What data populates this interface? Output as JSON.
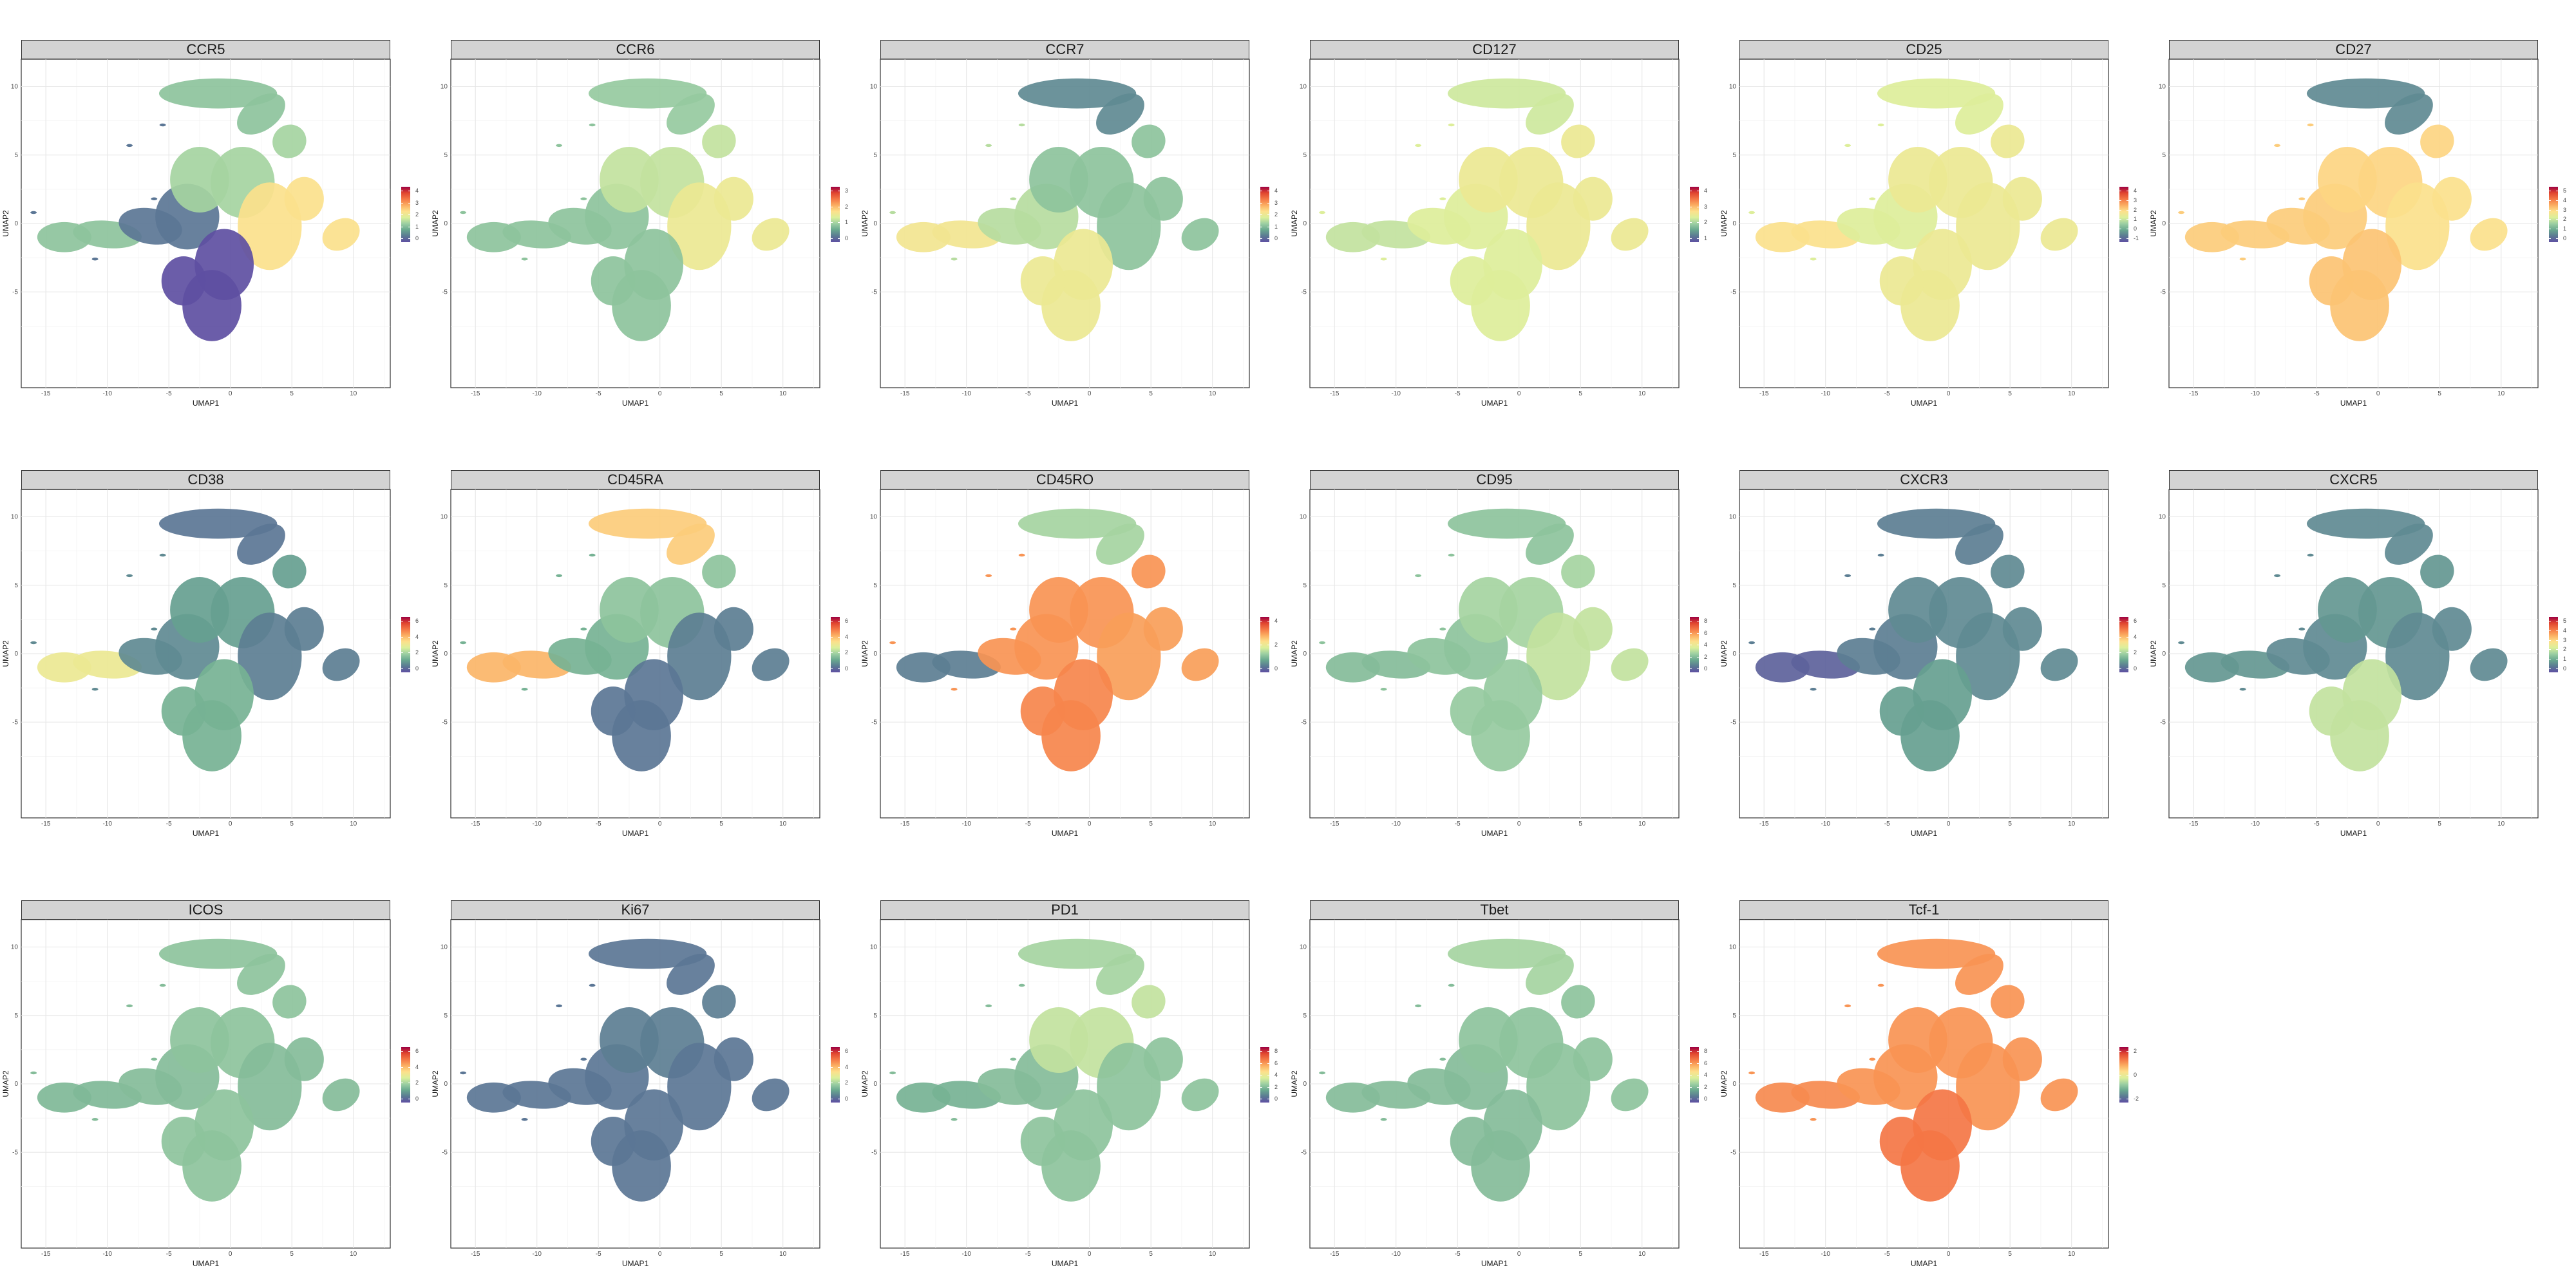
{
  "colors": {
    "panel_border": "#333333",
    "strip_fill": "#d3d3d3",
    "gridline": "#e6e6e6",
    "palette": [
      "#5e4fa2",
      "#3288bd",
      "#66c2a5",
      "#abdda4",
      "#e6f598",
      "#ffffbf",
      "#fee08b",
      "#fdae61",
      "#f46d43",
      "#d53e4f",
      "#9e0142"
    ],
    "shown_color_scale": [
      "#5e4fa2",
      "#5b7a93",
      "#69a88f",
      "#9ccfa2",
      "#dbef9b",
      "#fde08b",
      "#fbae62",
      "#f47745",
      "#e0452f",
      "#9e0142"
    ]
  },
  "chart_data": {
    "type": "scatter",
    "layout": "faceted grid, 3 rows x 6 columns, free legends",
    "xlabel": "UMAP1",
    "ylabel": "UMAP2",
    "xlim": [
      -17,
      13
    ],
    "ylim": [
      -12,
      12
    ],
    "x_ticks": [
      -15,
      -10,
      -5,
      0,
      5,
      10
    ],
    "x_tick_labels": [
      "-15",
      "-10",
      "-5",
      "0",
      "5",
      "10"
    ],
    "y_ticks": [
      -5,
      0,
      5,
      10
    ],
    "y_tick_labels": [
      "-5",
      "0",
      "5",
      "10"
    ],
    "grid": true,
    "legend_placement": "right of each facet",
    "facets": [
      {
        "title": "CCR5",
        "legend_ticks": [
          "0",
          "1",
          "2",
          "3",
          "4"
        ],
        "level": {
          "base": 0.1,
          "right": 0.55,
          "top": 0.3,
          "bottom": 0.0,
          "tail": 0.3,
          "upper": 0.35
        }
      },
      {
        "title": "CCR6",
        "legend_ticks": [
          "0",
          "1",
          "2",
          "3"
        ],
        "level": {
          "base": 0.3,
          "right": 0.5,
          "top": 0.32,
          "bottom": 0.3,
          "tail": 0.3,
          "upper": 0.4
        }
      },
      {
        "title": "CCR7",
        "legend_ticks": [
          "0",
          "1",
          "2",
          "3",
          "4"
        ],
        "level": {
          "base": 0.38,
          "right": 0.3,
          "top": 0.15,
          "bottom": 0.5,
          "tail": 0.52,
          "upper": 0.3
        }
      },
      {
        "title": "CD127",
        "legend_ticks": [
          "1",
          "2",
          "3",
          "4"
        ],
        "level": {
          "base": 0.45,
          "right": 0.5,
          "top": 0.42,
          "bottom": 0.45,
          "tail": 0.4,
          "upper": 0.5
        }
      },
      {
        "title": "CD25",
        "legend_ticks": [
          "-1",
          "0",
          "1",
          "2",
          "3",
          "4"
        ],
        "level": {
          "base": 0.45,
          "right": 0.5,
          "top": 0.45,
          "bottom": 0.5,
          "tail": 0.55,
          "upper": 0.5
        }
      },
      {
        "title": "CD27",
        "legend_ticks": [
          "0",
          "1",
          "2",
          "3",
          "4",
          "5"
        ],
        "level": {
          "base": 0.6,
          "right": 0.55,
          "top": 0.15,
          "bottom": 0.62,
          "tail": 0.6,
          "upper": 0.58
        }
      },
      {
        "title": "CD38",
        "legend_ticks": [
          "0",
          "2",
          "4",
          "6"
        ],
        "level": {
          "base": 0.15,
          "right": 0.12,
          "top": 0.1,
          "bottom": 0.25,
          "tail": 0.5,
          "upper": 0.2
        }
      },
      {
        "title": "CD45RA",
        "legend_ticks": [
          "0",
          "2",
          "4",
          "6"
        ],
        "level": {
          "base": 0.25,
          "right": 0.12,
          "top": 0.6,
          "bottom": 0.1,
          "tail": 0.65,
          "upper": 0.3
        }
      },
      {
        "title": "CD45RO",
        "legend_ticks": [
          "0",
          "2",
          "4"
        ],
        "level": {
          "base": 0.72,
          "right": 0.7,
          "top": 0.35,
          "bottom": 0.75,
          "tail": 0.12,
          "upper": 0.72
        }
      },
      {
        "title": "CD95",
        "legend_ticks": [
          "0",
          "2",
          "4",
          "6",
          "8"
        ],
        "level": {
          "base": 0.3,
          "right": 0.4,
          "top": 0.3,
          "bottom": 0.32,
          "tail": 0.28,
          "upper": 0.35
        }
      },
      {
        "title": "CXCR3",
        "legend_ticks": [
          "0",
          "2",
          "4",
          "6"
        ],
        "level": {
          "base": 0.12,
          "right": 0.15,
          "top": 0.12,
          "bottom": 0.2,
          "tail": 0.05,
          "upper": 0.15
        }
      },
      {
        "title": "CXCR5",
        "legend_ticks": [
          "0",
          "1",
          "2",
          "3",
          "4",
          "5"
        ],
        "level": {
          "base": 0.15,
          "right": 0.15,
          "top": 0.15,
          "bottom": 0.4,
          "tail": 0.18,
          "upper": 0.18
        }
      },
      {
        "title": "ICOS",
        "legend_ticks": [
          "0",
          "2",
          "4",
          "6"
        ],
        "level": {
          "base": 0.28,
          "right": 0.28,
          "top": 0.3,
          "bottom": 0.3,
          "tail": 0.27,
          "upper": 0.3
        }
      },
      {
        "title": "Ki67",
        "legend_ticks": [
          "0",
          "2",
          "4",
          "6"
        ],
        "level": {
          "base": 0.1,
          "right": 0.1,
          "top": 0.1,
          "bottom": 0.1,
          "tail": 0.1,
          "upper": 0.12
        }
      },
      {
        "title": "PD1",
        "legend_ticks": [
          "0",
          "2",
          "4",
          "6",
          "8"
        ],
        "level": {
          "base": 0.28,
          "right": 0.3,
          "top": 0.35,
          "bottom": 0.3,
          "tail": 0.25,
          "upper": 0.4
        }
      },
      {
        "title": "Tbet",
        "legend_ticks": [
          "0",
          "2",
          "4",
          "6",
          "8"
        ],
        "level": {
          "base": 0.28,
          "right": 0.3,
          "top": 0.35,
          "bottom": 0.28,
          "tail": 0.28,
          "upper": 0.3
        }
      },
      {
        "title": "Tcf-1",
        "legend_ticks": [
          "-2",
          "0",
          "2"
        ],
        "level": {
          "base": 0.72,
          "right": 0.72,
          "top": 0.72,
          "bottom": 0.78,
          "tail": 0.74,
          "upper": 0.72
        }
      }
    ]
  }
}
